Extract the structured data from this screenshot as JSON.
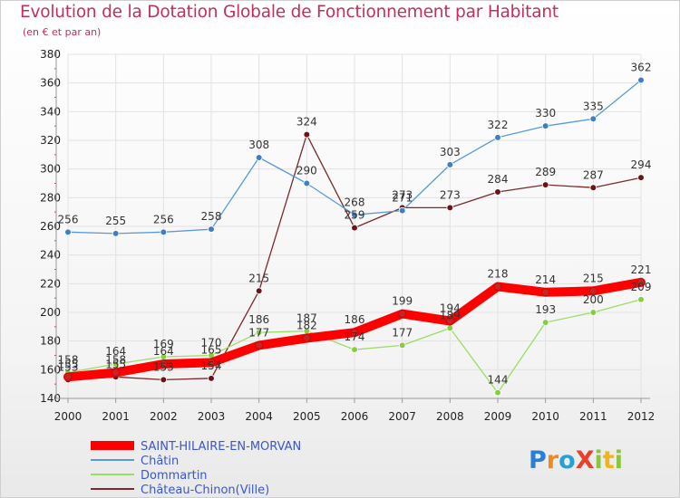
{
  "title": "Evolution de la Dotation Globale de Fonctionnement par Habitant",
  "subtitle": "(en € et par an)",
  "logo_text": "ProXiti",
  "chart_data": {
    "type": "line",
    "title": "Evolution de la Dotation Globale de Fonctionnement par Habitant",
    "subtitle": "(en € et par an)",
    "xlabel": "",
    "ylabel": "",
    "x": [
      "2000",
      "2001",
      "2002",
      "2003",
      "2004",
      "2005",
      "2006",
      "2007",
      "2008",
      "2009",
      "2010",
      "2011",
      "2012"
    ],
    "ylim": [
      140,
      380
    ],
    "yticks": [
      140,
      160,
      180,
      200,
      220,
      240,
      260,
      280,
      300,
      320,
      340,
      360,
      380
    ],
    "grid": true,
    "legend_position": "bottom-left",
    "series": [
      {
        "name": "SAINT-HILAIRE-EN-MORVAN",
        "color": "#ff0000",
        "marker": "#cc2222",
        "values": [
          155,
          158,
          164,
          165,
          177,
          182,
          186,
          199,
          194,
          218,
          214,
          215,
          221
        ]
      },
      {
        "name": "Châtin",
        "color": "#5a9ad6",
        "marker": "#3f7fc0",
        "values": [
          256,
          255,
          256,
          258,
          308,
          290,
          268,
          271,
          303,
          322,
          330,
          335,
          362
        ]
      },
      {
        "name": "Dommartin",
        "color": "#99dd66",
        "marker": "#88cc44",
        "values": [
          158,
          164,
          169,
          170,
          186,
          187,
          174,
          177,
          189,
          144,
          193,
          200,
          209
        ]
      },
      {
        "name": "Château-Chinon(Ville)",
        "color": "#7a2a2a",
        "marker": "#6a1515",
        "values": [
          153,
          155,
          153,
          154,
          215,
          324,
          259,
          273,
          273,
          284,
          289,
          287,
          294
        ]
      }
    ]
  }
}
